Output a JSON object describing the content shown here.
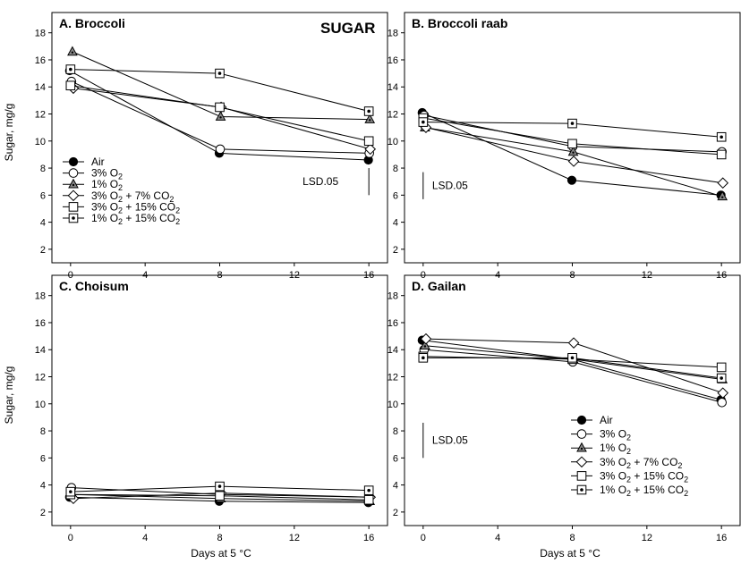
{
  "figure": {
    "title": "SUGAR",
    "x_axis_title": "Days at 5 °C",
    "y_axis_title": "Sugar, mg/g",
    "lsd_label": "LSD.05"
  },
  "chart_data": [
    {
      "type": "line",
      "title": "A.  Broccoli",
      "xlabel": "",
      "ylabel": "Sugar, mg/g",
      "xlim": [
        -1,
        17
      ],
      "ylim": [
        1,
        19.5
      ],
      "x_ticks": [
        0,
        4,
        8,
        12,
        16
      ],
      "y_ticks": [
        2,
        4,
        6,
        8,
        10,
        12,
        14,
        16,
        18
      ],
      "x": [
        0,
        8,
        16
      ],
      "lsd": {
        "x": 16,
        "low": 6,
        "high": 8
      },
      "legend": "left",
      "series": [
        {
          "name": "Air",
          "marker": "filled-circle",
          "values": [
            15.2,
            9.1,
            8.6
          ]
        },
        {
          "name": "3% O2",
          "marker": "open-circle",
          "values": [
            14.4,
            9.4,
            9.1
          ]
        },
        {
          "name": "1% O2",
          "marker": "triangle",
          "values": [
            16.6,
            11.8,
            11.6
          ]
        },
        {
          "name": "3% O2 + 7% CO2",
          "marker": "diamond",
          "values": [
            13.9,
            12.5,
            9.4
          ]
        },
        {
          "name": "3% O2 + 15% CO2",
          "marker": "open-square",
          "values": [
            14.1,
            12.5,
            10.0
          ]
        },
        {
          "name": "1% O2 + 15% CO2",
          "marker": "dotted-square",
          "values": [
            15.3,
            15.0,
            12.2
          ]
        }
      ]
    },
    {
      "type": "line",
      "title": "B.  Broccoli raab",
      "xlabel": "",
      "ylabel": "",
      "xlim": [
        -1,
        17
      ],
      "ylim": [
        1,
        19.5
      ],
      "x_ticks": [
        0,
        4,
        8,
        12,
        16
      ],
      "y_ticks": [
        2,
        4,
        6,
        8,
        10,
        12,
        14,
        16,
        18
      ],
      "x": [
        0,
        8,
        16
      ],
      "lsd": {
        "x": 0,
        "low": 5.7,
        "high": 7.7
      },
      "series": [
        {
          "name": "Air",
          "marker": "filled-circle",
          "values": [
            12.1,
            7.1,
            6.0
          ]
        },
        {
          "name": "3% O2",
          "marker": "open-circle",
          "values": [
            11.9,
            9.6,
            9.2
          ]
        },
        {
          "name": "1% O2",
          "marker": "triangle",
          "values": [
            11.0,
            9.2,
            5.9
          ]
        },
        {
          "name": "3% O2 + 7% CO2",
          "marker": "diamond",
          "values": [
            11.0,
            8.5,
            6.9
          ]
        },
        {
          "name": "3% O2 + 15% CO2",
          "marker": "open-square",
          "values": [
            11.7,
            9.8,
            9.0
          ]
        },
        {
          "name": "1% O2 + 15% CO2",
          "marker": "dotted-square",
          "values": [
            11.4,
            11.3,
            10.3
          ]
        }
      ]
    },
    {
      "type": "line",
      "title": "C.  Choisum",
      "xlabel": "Days at 5 °C",
      "ylabel": "Sugar, mg/g",
      "xlim": [
        -1,
        17
      ],
      "ylim": [
        1,
        19.5
      ],
      "x_ticks": [
        0,
        4,
        8,
        12,
        16
      ],
      "y_ticks": [
        2,
        4,
        6,
        8,
        10,
        12,
        14,
        16,
        18
      ],
      "x": [
        0,
        8,
        16
      ],
      "series": [
        {
          "name": "Air",
          "marker": "filled-circle",
          "values": [
            3.1,
            2.8,
            2.7
          ]
        },
        {
          "name": "3% O2",
          "marker": "open-circle",
          "values": [
            3.8,
            3.3,
            3.1
          ]
        },
        {
          "name": "1% O2",
          "marker": "triangle",
          "values": [
            3.3,
            3.0,
            2.8
          ]
        },
        {
          "name": "3% O2 + 7% CO2",
          "marker": "diamond",
          "values": [
            3.0,
            3.4,
            3.1
          ]
        },
        {
          "name": "3% O2 + 15% CO2",
          "marker": "open-square",
          "values": [
            3.3,
            3.2,
            2.9
          ]
        },
        {
          "name": "1% O2 + 15% CO2",
          "marker": "dotted-square",
          "values": [
            3.5,
            3.9,
            3.6
          ]
        }
      ]
    },
    {
      "type": "line",
      "title": "D.  Gailan",
      "xlabel": "Days at 5 °C",
      "ylabel": "",
      "xlim": [
        -1,
        17
      ],
      "ylim": [
        1,
        19.5
      ],
      "x_ticks": [
        0,
        4,
        8,
        12,
        16
      ],
      "y_ticks": [
        2,
        4,
        6,
        8,
        10,
        12,
        14,
        16,
        18
      ],
      "x": [
        0,
        8,
        16
      ],
      "lsd": {
        "x": 0,
        "low": 6,
        "high": 8.6
      },
      "legend": "bottom-right",
      "series": [
        {
          "name": "Air",
          "marker": "filled-circle",
          "values": [
            14.7,
            13.3,
            10.3
          ]
        },
        {
          "name": "3% O2",
          "marker": "open-circle",
          "values": [
            14.0,
            13.1,
            10.1
          ]
        },
        {
          "name": "1% O2",
          "marker": "triangle",
          "values": [
            14.3,
            13.3,
            11.8
          ]
        },
        {
          "name": "3% O2 + 7% CO2",
          "marker": "diamond",
          "values": [
            14.8,
            14.5,
            10.8
          ]
        },
        {
          "name": "3% O2 + 15% CO2",
          "marker": "open-square",
          "values": [
            13.5,
            13.3,
            12.7
          ]
        },
        {
          "name": "1% O2 + 15% CO2",
          "marker": "dotted-square",
          "values": [
            13.4,
            13.4,
            11.9
          ]
        }
      ]
    }
  ]
}
